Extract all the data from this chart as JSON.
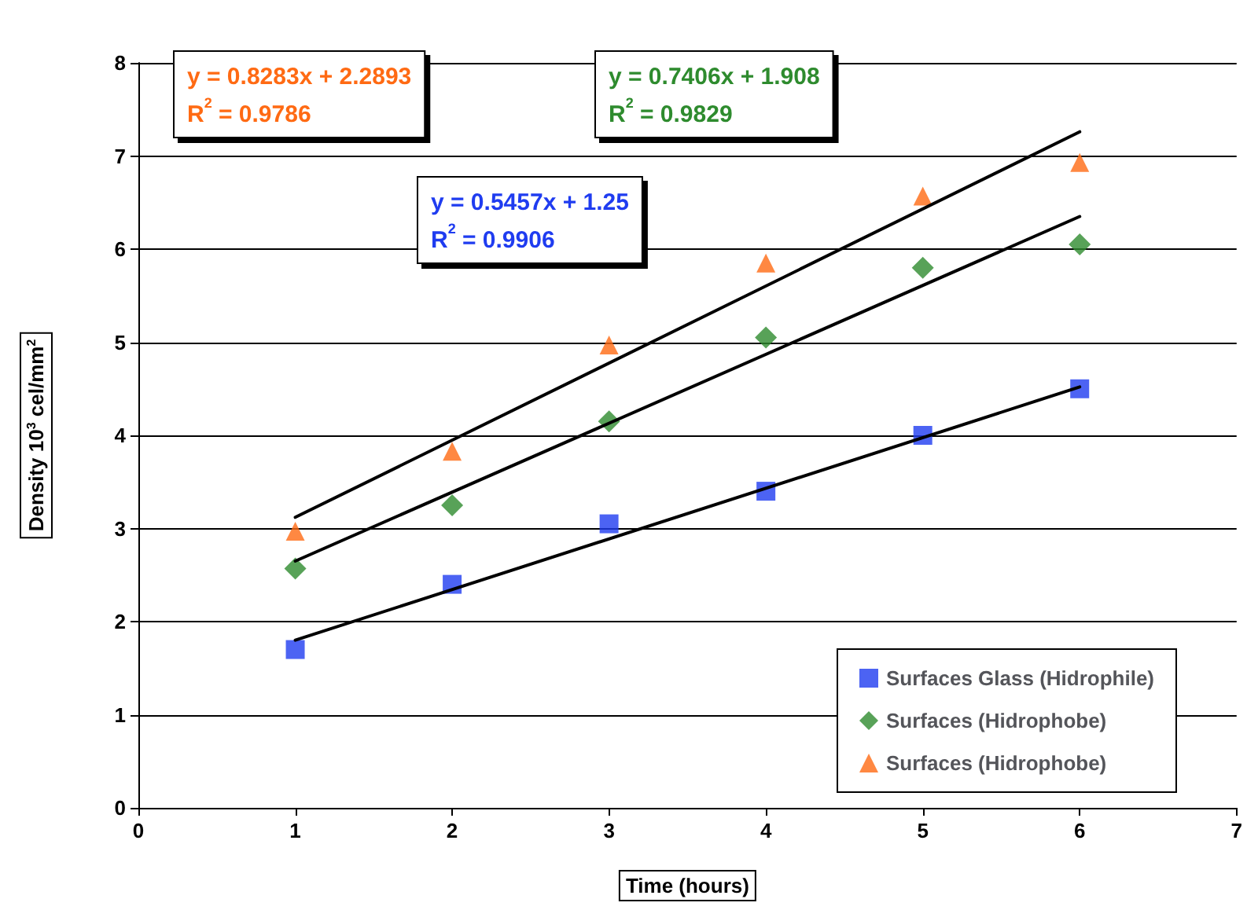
{
  "chart_data": {
    "type": "scatter",
    "xlabel": "Time (hours)",
    "ylabel": "Density 10$^{3}$ cel/mm$^{2}$",
    "xlim": [
      0,
      7
    ],
    "xticks": [
      0,
      1,
      2,
      3,
      4,
      5,
      6,
      7
    ],
    "ylim": [
      0,
      8
    ],
    "yticks": [
      0,
      1,
      2,
      3,
      4,
      5,
      6,
      7,
      8
    ],
    "grid": "y",
    "legend": "bottom right",
    "series": [
      {
        "name": "Surfaces Glass (Hidrophile)",
        "color": "#1f3cf0",
        "marker": "square",
        "x": [
          1,
          2,
          3,
          4,
          5,
          6
        ],
        "values": [
          1.7,
          2.4,
          3.05,
          3.4,
          4.0,
          4.5
        ]
      },
      {
        "name": "Surfaces (Hidrophobe)",
        "color": "#2e8b2e",
        "marker": "diamond",
        "x": [
          1,
          2,
          3,
          4,
          5,
          6
        ],
        "values": [
          2.57,
          3.25,
          4.15,
          5.05,
          5.8,
          6.05
        ]
      },
      {
        "name": "Surfaces (Hidrophobe)",
        "color": "#ff6a13",
        "marker": "triangle",
        "x": [
          1,
          2,
          3,
          4,
          5,
          6
        ],
        "values": [
          2.97,
          3.83,
          4.97,
          5.85,
          6.57,
          6.93
        ]
      },
      {
        "type": "line",
        "color": "#000000",
        "marker": "none",
        "x": [
          1,
          6
        ],
        "values": [
          1.8,
          4.52
        ]
      },
      {
        "type": "line",
        "color": "#000000",
        "marker": "none",
        "x": [
          1,
          6
        ],
        "values": [
          2.65,
          6.35
        ]
      },
      {
        "type": "line",
        "color": "#000000",
        "marker": "none",
        "x": [
          1,
          6
        ],
        "values": [
          3.12,
          7.26
        ]
      }
    ],
    "annotations": [
      "y = 0.5457x + 1.25\nR$^{2}$ = 0.9906",
      "y = 0.7406x + 1.908\nR$^{2}$ = 0.9829",
      "y = 0.8283x + 2.2893\nR$^{2}$ = 0.9786"
    ]
  }
}
